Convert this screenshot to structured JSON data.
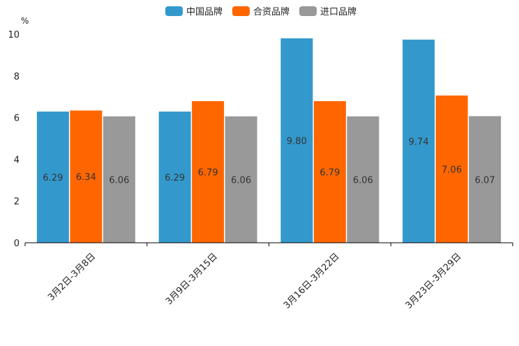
{
  "chart_data": {
    "type": "bar",
    "unit": "%",
    "ylim": [
      0,
      10
    ],
    "yticks": [
      0,
      2,
      4,
      6,
      8,
      10
    ],
    "categories": [
      "3月2日-3月8日",
      "3月9日-3月15日",
      "3月16日-3月22日",
      "3月23日-3月29日"
    ],
    "series": [
      {
        "name": "中国品牌",
        "color": "#3399cc",
        "values": [
          6.29,
          6.29,
          9.8,
          9.74
        ]
      },
      {
        "name": "合资品牌",
        "color": "#ff6600",
        "values": [
          6.34,
          6.79,
          6.79,
          7.06
        ]
      },
      {
        "name": "进口品牌",
        "color": "#999999",
        "values": [
          6.06,
          6.06,
          6.06,
          6.07
        ]
      }
    ],
    "grid": false,
    "legend_position": "top-center"
  }
}
